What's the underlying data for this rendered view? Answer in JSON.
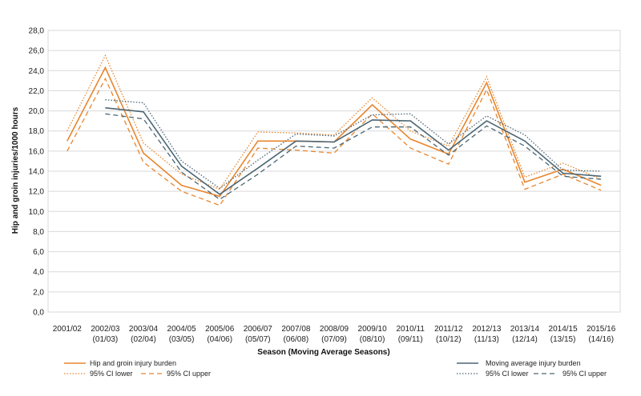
{
  "chart_data": {
    "type": "line",
    "title": "",
    "xlabel": "Season (Moving Average Seasons)",
    "ylabel": "Hip and groin injuries/1000 hours",
    "ylim": [
      0,
      28
    ],
    "y_ticks": [
      "0,0",
      "2,0",
      "4,0",
      "6,0",
      "8,0",
      "10,0",
      "12,0",
      "14,0",
      "16,0",
      "18,0",
      "20,0",
      "22,0",
      "24,0",
      "26,0",
      "28,0"
    ],
    "categories": [
      {
        "line1": "2001/02",
        "line2": ""
      },
      {
        "line1": "2002/03",
        "line2": "(01/03)"
      },
      {
        "line1": "2003/04",
        "line2": "(02/04)"
      },
      {
        "line1": "2004/05",
        "line2": "(03/05)"
      },
      {
        "line1": "2005/06",
        "line2": "(04/06)"
      },
      {
        "line1": "2006/07",
        "line2": "(05/07)"
      },
      {
        "line1": "2007/08",
        "line2": "(06/08)"
      },
      {
        "line1": "2008/09",
        "line2": "(07/09)"
      },
      {
        "line1": "2009/10",
        "line2": "(08/10)"
      },
      {
        "line1": "2010/11",
        "line2": "(09/11)"
      },
      {
        "line1": "2011/12",
        "line2": "(10/12)"
      },
      {
        "line1": "2012/13",
        "line2": "(11/13)"
      },
      {
        "line1": "2013/14",
        "line2": "(12/14)"
      },
      {
        "line1": "2014/15",
        "line2": "(13/15)"
      },
      {
        "line1": "2015/16",
        "line2": "(14/16)"
      }
    ],
    "grid": "horizontal",
    "legend_position": "bottom",
    "series": [
      {
        "name": "Hip and groin injury burden",
        "color": "#E8862E",
        "style": "solid",
        "values": [
          17.0,
          24.3,
          15.8,
          12.6,
          11.5,
          17.0,
          17.0,
          16.9,
          20.6,
          17.2,
          15.7,
          22.8,
          12.9,
          14.2,
          12.6
        ]
      },
      {
        "name": "95% CI lower",
        "color": "#E8862E",
        "style": "dotted",
        "values": [
          18.0,
          25.5,
          16.8,
          13.7,
          12.2,
          17.9,
          17.8,
          17.6,
          21.3,
          18.0,
          16.5,
          23.4,
          13.4,
          14.8,
          13.2
        ]
      },
      {
        "name": "95% CI upper",
        "color": "#E8862E",
        "style": "dashed",
        "values": [
          16.0,
          23.2,
          14.9,
          12.0,
          10.6,
          16.3,
          16.1,
          15.8,
          19.7,
          16.3,
          14.7,
          22.1,
          12.2,
          13.7,
          12.1
        ]
      },
      {
        "name": "Moving average injury burden",
        "color": "#4C6775",
        "style": "solid",
        "values": [
          null,
          20.3,
          19.9,
          14.5,
          11.7,
          14.3,
          17.0,
          16.9,
          19.1,
          19.0,
          16.1,
          19.0,
          17.0,
          13.8,
          13.5
        ]
      },
      {
        "name": "95% CI lower",
        "color": "#4C6775",
        "style": "dotted",
        "values": [
          null,
          21.1,
          20.8,
          15.0,
          12.3,
          15.1,
          17.7,
          17.5,
          19.6,
          19.7,
          16.7,
          19.5,
          17.6,
          14.1,
          14.0
        ]
      },
      {
        "name": "95% CI upper",
        "color": "#4C6775",
        "style": "dashed",
        "values": [
          null,
          19.7,
          19.2,
          13.9,
          11.2,
          13.7,
          16.5,
          16.3,
          18.4,
          18.4,
          15.6,
          18.5,
          16.5,
          13.5,
          13.2
        ]
      }
    ]
  }
}
